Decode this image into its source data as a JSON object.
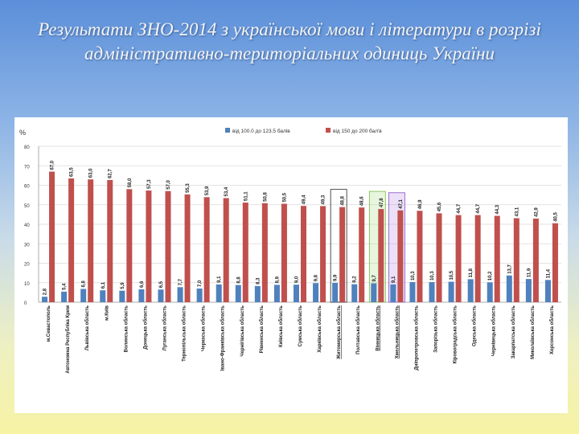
{
  "title": "Результати ЗНО-2014 з української мови і літератури в розрізі адміністративно-територіальних одиниць України",
  "chart_data": {
    "type": "bar",
    "ylabel": "%",
    "ylim": [
      0,
      80
    ],
    "yticks": [
      0,
      10,
      20,
      30,
      40,
      50,
      60,
      70,
      80
    ],
    "grid": true,
    "legend_position": "top",
    "series": [
      {
        "name": "від 100.0 до 123.5 балів",
        "color": "#4f81bd",
        "values": [
          2.8,
          5.4,
          6.8,
          6.1,
          5.9,
          6.6,
          6.5,
          7.7,
          7.0,
          9.1,
          8.8,
          8.3,
          8.9,
          9.0,
          9.8,
          9.9,
          9.2,
          9.7,
          9.1,
          10.3,
          10.3,
          10.5,
          11.8,
          10.2,
          13.7,
          11.9,
          11.4
        ]
      },
      {
        "name": "від 150 до 200 бал'в",
        "color": "#c0504d",
        "values": [
          67.0,
          63.5,
          63.0,
          62.7,
          58.0,
          57.3,
          57.0,
          55.3,
          53.9,
          53.4,
          51.1,
          50.8,
          50.5,
          49.4,
          49.3,
          48.8,
          48.6,
          47.8,
          47.1,
          46.9,
          45.6,
          44.7,
          44.7,
          44.3,
          43.1,
          42.9,
          40.5
        ]
      }
    ],
    "value_labels": {
      "low": [
        "2,8",
        "5,4",
        "6,8",
        "6,1",
        "5,9",
        "6,6",
        "6,5",
        "7,7",
        "7,0",
        "9,1",
        "8,8",
        "8,3",
        "8,9",
        "9,0",
        "9,8",
        "9,9",
        "9,2",
        "9,7",
        "9,1",
        "10,3",
        "10,3",
        "10,5",
        "11,8",
        "10,2",
        "13,7",
        "11,9",
        "11,4"
      ],
      "high": [
        "67,0",
        "63,5",
        "63,0",
        "62,7",
        "58,0",
        "57,3",
        "57,0",
        "55,3",
        "53,9",
        "53,4",
        "51,1",
        "50,8",
        "50,5",
        "49,4",
        "49,3",
        "48,8",
        "48,6",
        "47,8",
        "47,1",
        "46,9",
        "45,6",
        "44,7",
        "44,7",
        "44,3",
        "43,1",
        "42,9",
        "40,5"
      ]
    },
    "categories": [
      "м.Севастополь",
      "Автономна Республіка Крим",
      "Львівська область",
      "м.Київ",
      "Волинська область",
      "Донецька область",
      "Луганська область",
      "Тернопільська область",
      "Черкаська область",
      "Івано-Франківська область",
      "Чернігівська область",
      "Рівненська область",
      "Київська область",
      "Сумська область",
      "Харківська область",
      "Житомирська область",
      "Полтавська область",
      "Вінницька область",
      "Хмельницька область",
      "Дніпропетровська область",
      "Запорізька область",
      "Кіровоградська область",
      "Одеська область",
      "Чернівецька область",
      "Закарпатська область",
      "Миколаївська область",
      "Херсонська область"
    ],
    "highlighted_categories": [
      {
        "index": 15,
        "outline": "#222222"
      },
      {
        "index": 17,
        "outline": "#7ab648"
      },
      {
        "index": 18,
        "outline": "#8a4fc4"
      }
    ]
  }
}
